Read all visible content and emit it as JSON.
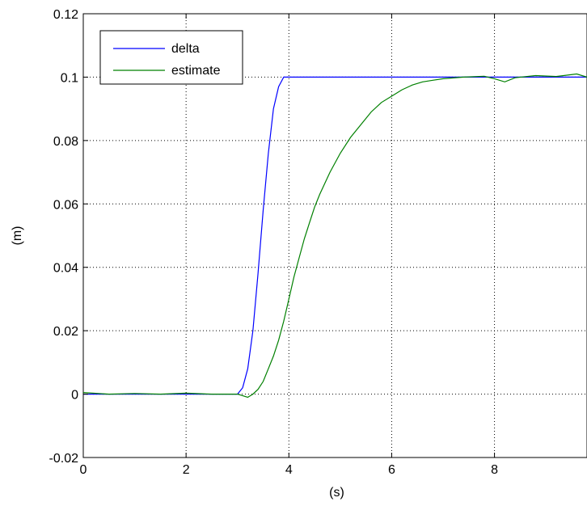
{
  "chart_data": {
    "type": "line",
    "xlabel": "(s)",
    "ylabel": "(m)",
    "xlim": [
      0,
      9.8
    ],
    "ylim": [
      -0.02,
      0.12
    ],
    "xticks": [
      0,
      2,
      4,
      6,
      8
    ],
    "xtick_labels": [
      "0",
      "2",
      "4",
      "6",
      "8"
    ],
    "yticks": [
      -0.02,
      0,
      0.02,
      0.04,
      0.06,
      0.08,
      0.1,
      0.12
    ],
    "ytick_labels": [
      "-0.02",
      "0",
      "0.02",
      "0.04",
      "0.06",
      "0.08",
      "0.1",
      "0.12"
    ],
    "grid": true,
    "legend_position": "top-left",
    "series": [
      {
        "name": "delta",
        "color": "#0000ff",
        "x": [
          0,
          3.0,
          3.1,
          3.2,
          3.3,
          3.4,
          3.5,
          3.6,
          3.7,
          3.8,
          3.9,
          4.0,
          5.0,
          6.0,
          7.0,
          8.0,
          9.0,
          9.8
        ],
        "y": [
          0,
          0,
          0.002,
          0.008,
          0.02,
          0.038,
          0.058,
          0.076,
          0.09,
          0.097,
          0.1,
          0.1,
          0.1,
          0.1,
          0.1,
          0.1,
          0.1,
          0.1
        ]
      },
      {
        "name": "estimate",
        "color": "#008000",
        "x": [
          0,
          0.5,
          1.0,
          1.5,
          2.0,
          2.5,
          3.0,
          3.2,
          3.3,
          3.4,
          3.5,
          3.6,
          3.7,
          3.8,
          3.9,
          4.0,
          4.1,
          4.2,
          4.3,
          4.4,
          4.5,
          4.6,
          4.8,
          5.0,
          5.2,
          5.4,
          5.6,
          5.8,
          6.0,
          6.2,
          6.4,
          6.6,
          6.8,
          7.0,
          7.4,
          7.8,
          8.0,
          8.2,
          8.4,
          8.8,
          9.2,
          9.6,
          9.8
        ],
        "y": [
          0.0005,
          0.0,
          0.0002,
          0.0,
          0.0003,
          0.0,
          0.0,
          -0.001,
          0.0,
          0.0015,
          0.004,
          0.008,
          0.012,
          0.017,
          0.023,
          0.03,
          0.037,
          0.043,
          0.049,
          0.054,
          0.059,
          0.063,
          0.07,
          0.076,
          0.081,
          0.085,
          0.089,
          0.092,
          0.094,
          0.096,
          0.0975,
          0.0985,
          0.099,
          0.0995,
          0.1,
          0.1003,
          0.0995,
          0.0985,
          0.0998,
          0.1005,
          0.1002,
          0.101,
          0.1
        ]
      }
    ]
  }
}
